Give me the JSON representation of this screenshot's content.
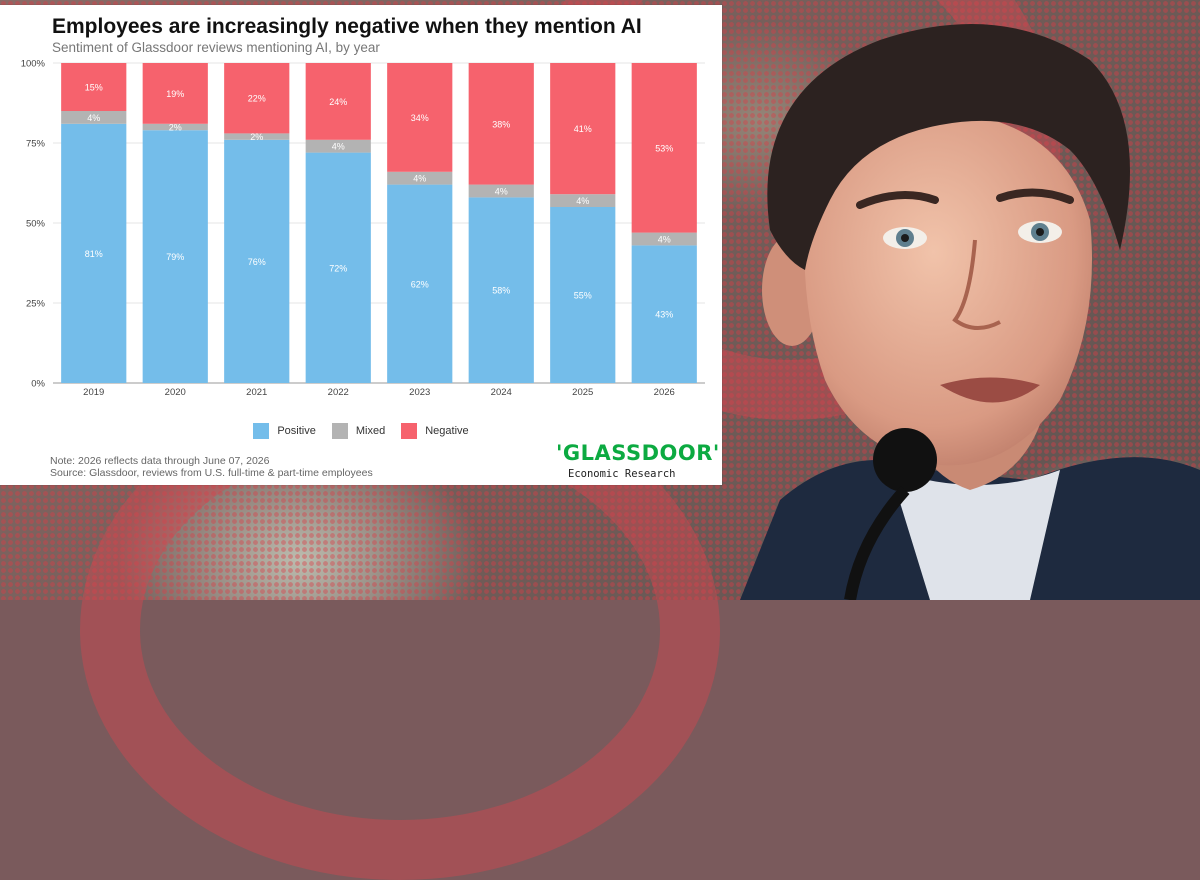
{
  "colors": {
    "positive": "#74bdea",
    "mixed": "#b3b3b3",
    "negative": "#f6626d",
    "brand_green": "#0caa41"
  },
  "chart_data": {
    "type": "bar",
    "stacked": true,
    "title": "Employees are increasingly negative when they mention AI",
    "subtitle": "Sentiment of Glassdoor reviews mentioning AI, by year",
    "categories": [
      "2019",
      "2020",
      "2021",
      "2022",
      "2023",
      "2024",
      "2025",
      "2026"
    ],
    "series": [
      {
        "name": "Positive",
        "values": [
          81,
          79,
          76,
          72,
          62,
          58,
          55,
          43
        ],
        "color": "#74bdea"
      },
      {
        "name": "Mixed",
        "values": [
          4,
          2,
          2,
          4,
          4,
          4,
          4,
          4
        ],
        "color": "#b3b3b3"
      },
      {
        "name": "Negative",
        "values": [
          15,
          19,
          22,
          24,
          34,
          38,
          41,
          53
        ],
        "color": "#f6626d"
      }
    ],
    "yticks": [
      "0%",
      "25%",
      "50%",
      "75%",
      "100%"
    ],
    "ylim": [
      0,
      100
    ],
    "xlabel": "",
    "ylabel": "",
    "grid": true,
    "legend_position": "bottom"
  },
  "note": {
    "line1": "Note: 2026 reflects data through June 07, 2026",
    "line2": "Source: Glassdoor, reviews from U.S. full-time & part-time employees"
  },
  "logo": {
    "wordmark": "'GLASSDOOR'",
    "subtitle": "Economic Research"
  }
}
